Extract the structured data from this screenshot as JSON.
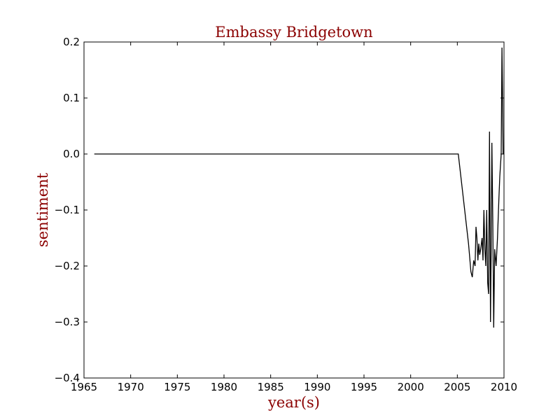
{
  "chart_data": {
    "type": "line",
    "title": "Embassy Bridgetown",
    "xlabel": "year(s)",
    "ylabel": "sentiment",
    "xlim": [
      1965,
      2010
    ],
    "ylim": [
      -0.4,
      0.2
    ],
    "xticks": [
      1965,
      1970,
      1975,
      1980,
      1985,
      1990,
      1995,
      2000,
      2005,
      2010
    ],
    "yticks": [
      0.2,
      0.1,
      0.0,
      -0.1,
      -0.2,
      -0.3,
      -0.4
    ],
    "xtick_labels": [
      "1965",
      "1970",
      "1975",
      "1980",
      "1985",
      "1990",
      "1995",
      "2000",
      "2005",
      "2010"
    ],
    "ytick_labels": [
      "0.2",
      "0.1",
      "0.0",
      "−0.1",
      "−0.2",
      "−0.3",
      "−0.4"
    ],
    "grid": false,
    "colors": {
      "line": "#000000",
      "title": "#8b0000",
      "axis_label": "#8b0000"
    },
    "series": [
      {
        "x": [
          1966.1,
          2005.1,
          2006.2,
          2006.3,
          2006.45,
          2006.6,
          2006.75,
          2006.9,
          2007.0,
          2007.1,
          2007.2,
          2007.3,
          2007.4,
          2007.5,
          2007.65,
          2007.75,
          2007.85,
          2007.95,
          2008.05,
          2008.15,
          2008.25,
          2008.35,
          2008.45,
          2008.55,
          2008.62,
          2008.7,
          2008.8,
          2008.9,
          2009.0,
          2009.15,
          2009.3,
          2009.45,
          2009.55,
          2009.7,
          2009.78,
          2009.85,
          2009.9,
          2009.95
        ],
        "values": [
          0.0,
          0.0,
          -0.16,
          -0.18,
          -0.21,
          -0.22,
          -0.19,
          -0.2,
          -0.13,
          -0.15,
          -0.19,
          -0.16,
          -0.18,
          -0.17,
          -0.15,
          -0.19,
          -0.1,
          -0.17,
          -0.2,
          -0.1,
          -0.23,
          -0.25,
          0.04,
          -0.3,
          -0.18,
          0.02,
          -0.12,
          -0.31,
          -0.17,
          -0.2,
          -0.15,
          -0.08,
          -0.04,
          0.0,
          0.19,
          0.1,
          0.0,
          0.0
        ]
      }
    ]
  }
}
